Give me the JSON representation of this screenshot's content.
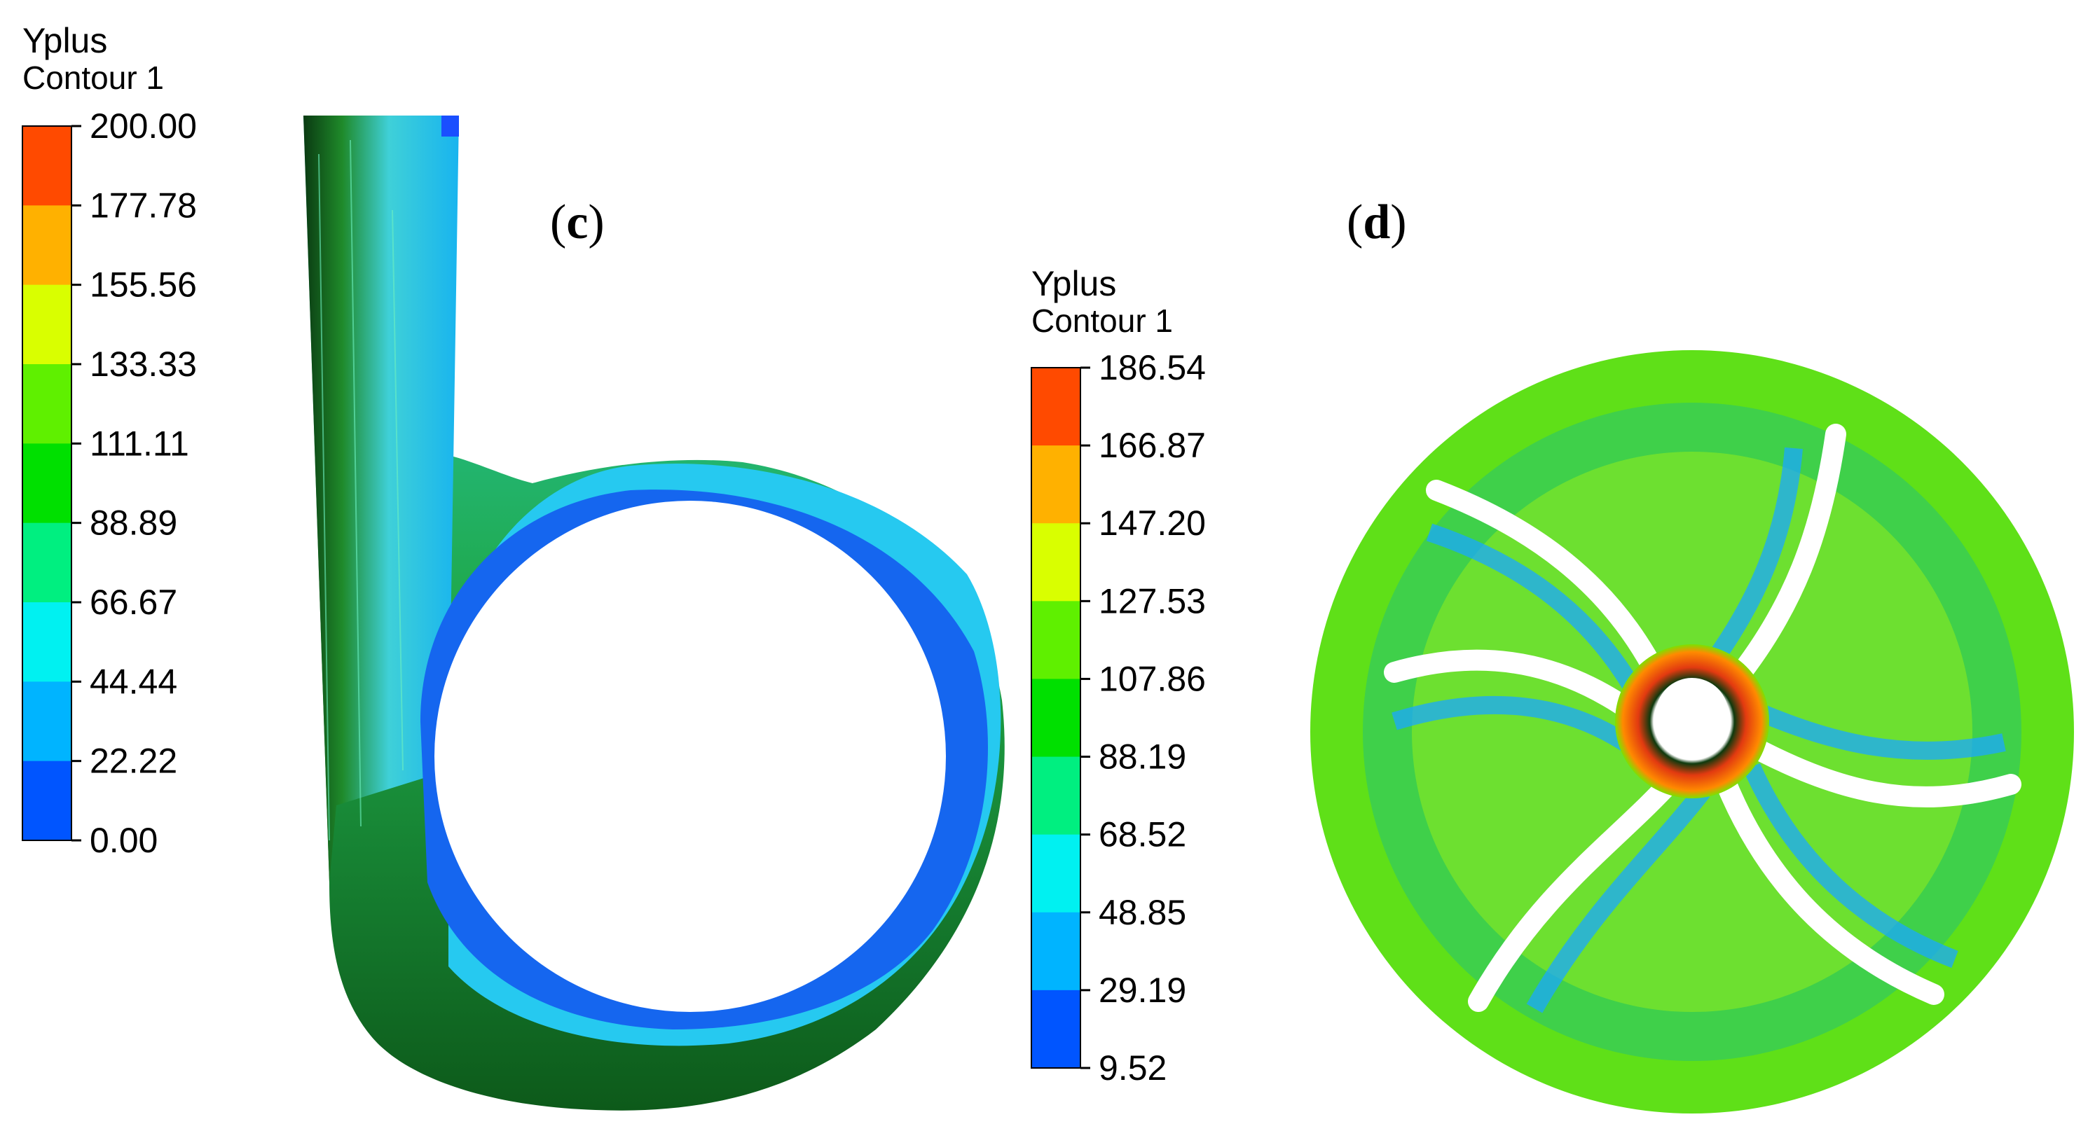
{
  "legends": [
    {
      "title": "Yplus",
      "subtitle": "Contour 1",
      "ticks": [
        "200.00",
        "177.78",
        "155.56",
        "133.33",
        "111.11",
        "88.89",
        "66.67",
        "44.44",
        "22.22",
        "0.00"
      ],
      "colors": [
        "#ff4a00",
        "#ffb100",
        "#d9ff00",
        "#5ff000",
        "#00e000",
        "#00ef80",
        "#00f1f1",
        "#00b4ff",
        "#0055ff"
      ]
    },
    {
      "title": "Yplus",
      "subtitle": "Contour 1",
      "ticks": [
        "186.54",
        "166.87",
        "147.20",
        "127.53",
        "107.86",
        "88.19",
        "68.52",
        "48.85",
        "29.19",
        "9.52"
      ],
      "colors": [
        "#ff4a00",
        "#ffb100",
        "#d9ff00",
        "#5ff000",
        "#00e000",
        "#00ef80",
        "#00f1f1",
        "#00b4ff",
        "#0055ff"
      ]
    }
  ],
  "panels": [
    {
      "open": "(",
      "letter": "c",
      "close": ")"
    },
    {
      "open": "(",
      "letter": "d",
      "close": ")"
    }
  ]
}
